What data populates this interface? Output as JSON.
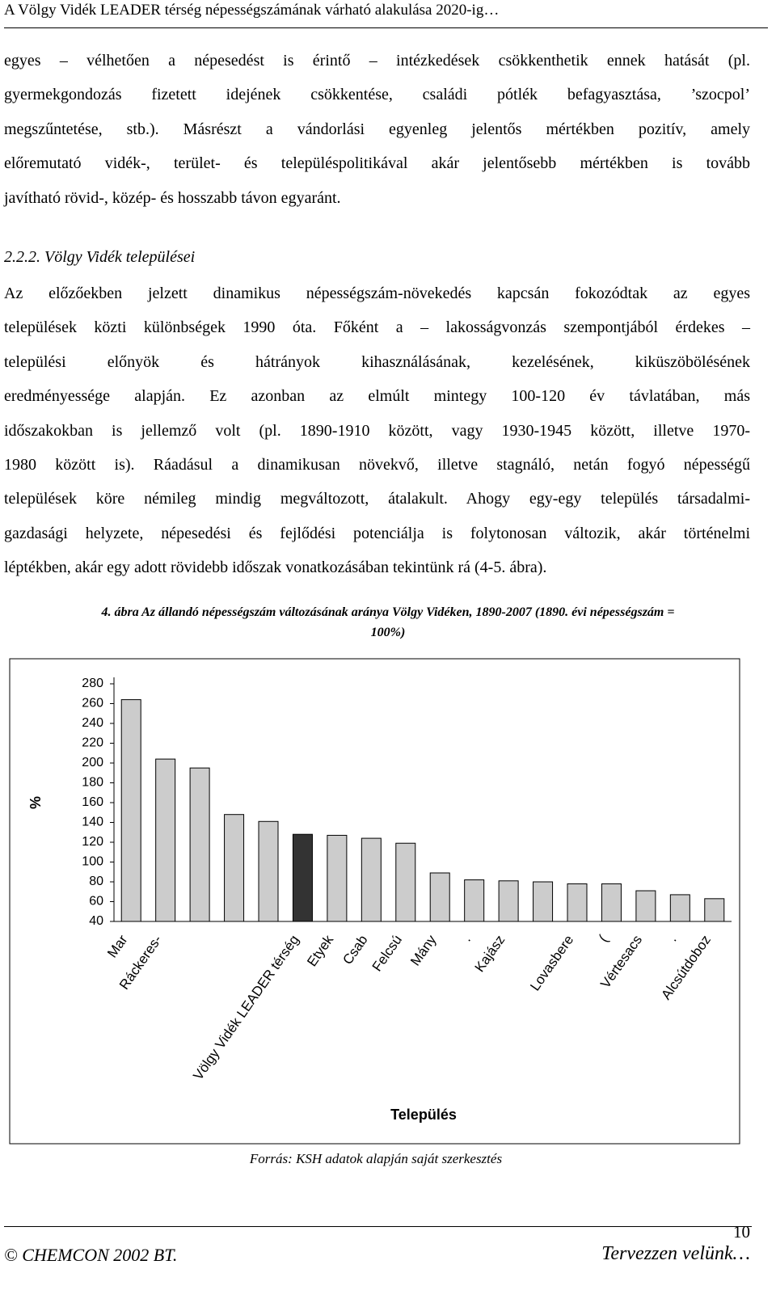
{
  "header": {
    "title": "A Völgy Vidék LEADER térség népességszámának várható alakulása 2020-ig…"
  },
  "paragraphs": [
    [
      "egyes – vélhetően a népesedést is érintő – intézkedések csökkenthetik ennek hatását (pl.",
      "gyermekgondozás fizetett idejének csökkentése, családi pótlék befagyasztása, ’szocpol’",
      "megszűntetése, stb.). Másrészt a vándorlási egyenleg jelentős mértékben pozitív, amely",
      "előremutató vidék-, terület- és településpolitikával akár jelentősebb mértékben is tovább",
      "javítható rövid-, közép- és hosszabb távon egyaránt."
    ],
    [
      "Az előzőekben jelzett dinamikus népességszám-növekedés kapcsán fokozódtak az egyes",
      "települések közti különbségek 1990 óta. Főként a – lakosságvonzás szempontjából érdekes –",
      "települési előnyök és hátrányok kihasználásának, kezelésének, kiküszöbölésének",
      "eredményessége alapján. Ez azonban az elmúlt mintegy 100-120 év távlatában, más",
      "időszakokban is jellemző volt (pl. 1890-1910 között, vagy 1930-1945 között, illetve 1970-",
      "1980 között is). Ráadásul a dinamikusan növekvő, illetve stagnáló, netán fogyó népességű",
      "települések köre némileg mindig megváltozott, átalakult. Ahogy egy-egy település társadalmi-",
      "gazdasági helyzete, népesedési és fejlődési potenciálja is folytonosan változik, akár történelmi",
      "léptékben, akár egy adott rövidebb időszak vonatkozásában tekintünk rá (4-5. ábra)."
    ]
  ],
  "heading": "2.2.2. Völgy Vidék települései",
  "figure": {
    "caption": [
      "4. ábra Az állandó népességszám változásának aránya Völgy Vidéken, 1890-2007 (1890. évi népességszám =",
      "100%)"
    ],
    "source": "Forrás: KSH adatok alapján saját szerkesztés"
  },
  "chart_data": {
    "type": "bar",
    "y_label": "%",
    "x_label": "Település",
    "categories": [
      "Mar",
      "Ráckeres-",
      null,
      null,
      null,
      "Völgy Vidék LEADER térség",
      "Etyek",
      "Csab",
      "Felcsú",
      "Mány",
      ".",
      "Kajász",
      null,
      "Lovasbere",
      "(",
      "Vértesacs",
      ".",
      "Alcsútdoboz"
    ],
    "values": [
      264,
      204,
      195,
      148,
      141,
      128,
      127,
      124,
      119,
      89,
      82,
      81,
      80,
      78,
      78,
      71,
      67,
      63
    ],
    "colors": [
      "#cccccc",
      "#cccccc",
      "#cccccc",
      "#cccccc",
      "#cccccc",
      "#333333",
      "#cccccc",
      "#cccccc",
      "#cccccc",
      "#cccccc",
      "#cccccc",
      "#cccccc",
      "#cccccc",
      "#cccccc",
      "#cccccc",
      "#cccccc",
      "#cccccc",
      "#cccccc"
    ],
    "ylim": [
      40,
      280
    ],
    "yticks": [
      40,
      60,
      80,
      100,
      120,
      140,
      160,
      180,
      200,
      220,
      240,
      260,
      280
    ],
    "grid": false
  },
  "footer": {
    "page_number": "10",
    "company": "© CHEMCON 2002 BT.",
    "slogan": "Tervezzen velünk…"
  }
}
